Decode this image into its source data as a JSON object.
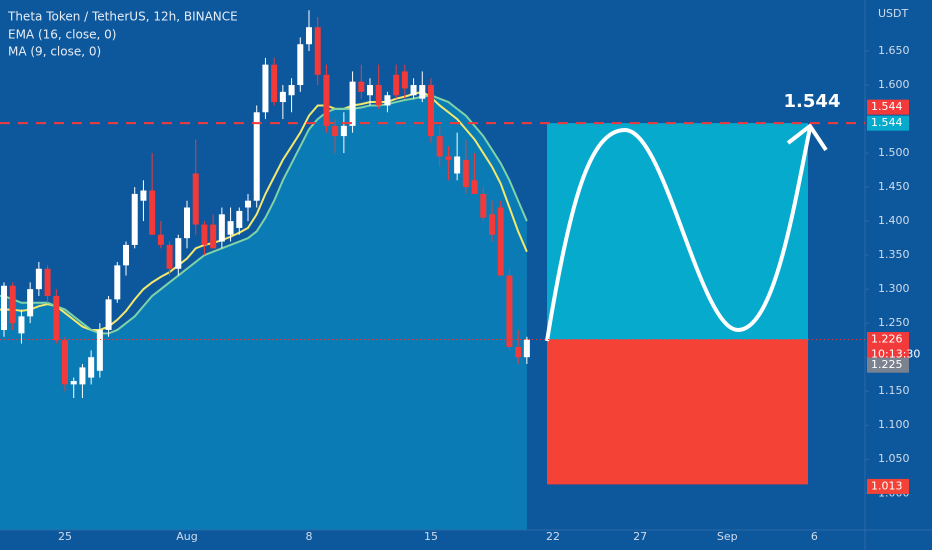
{
  "chart_data": {
    "type": "candlestick",
    "title": "Theta Token / TetherUS, 12h, BINANCE",
    "axis_unit": "USDT",
    "categories": [
      null,
      null,
      null,
      null,
      null,
      null,
      null,
      null,
      "25",
      null,
      null,
      null,
      null,
      null,
      null,
      null,
      null,
      null,
      null,
      null,
      null,
      null,
      "Aug",
      null,
      null,
      null,
      null,
      null,
      null,
      null,
      null,
      null,
      null,
      null,
      null,
      null,
      "8",
      null,
      null,
      null,
      null,
      null,
      null,
      null,
      null,
      null,
      null,
      null,
      null,
      null,
      "15",
      null,
      null,
      null,
      null,
      null,
      null,
      null,
      null,
      null,
      null,
      null,
      null,
      null,
      "22",
      null,
      null,
      null,
      null,
      null,
      null,
      null,
      null,
      null,
      "27",
      null,
      null,
      null,
      null,
      null,
      null,
      null,
      null,
      null,
      "Sep",
      null,
      null,
      null,
      null,
      null,
      null,
      null,
      null,
      null,
      "6",
      null,
      null,
      null,
      null,
      null
    ],
    "open": [
      1.27,
      1.24,
      1.305,
      1.235,
      1.26,
      1.3,
      1.33,
      1.29,
      1.225,
      1.16,
      1.16,
      1.17,
      1.18,
      1.24,
      1.285,
      1.335,
      1.365,
      1.43,
      1.445,
      1.38,
      1.365,
      1.33,
      1.375,
      1.47,
      1.395,
      1.395,
      1.37,
      1.38,
      1.39,
      1.42,
      1.43,
      1.56,
      1.63,
      1.575,
      1.585,
      1.6,
      1.66,
      1.685,
      1.615,
      1.54,
      1.525,
      1.54,
      1.605,
      1.585,
      1.6,
      1.57,
      1.615,
      1.62,
      1.585,
      1.58,
      1.6,
      1.525,
      1.495,
      1.47,
      1.49,
      1.46,
      1.44,
      1.41,
      1.42,
      1.32,
      1.215,
      1.2,
      null,
      null,
      null,
      null,
      null,
      null,
      null,
      null,
      null,
      null,
      null,
      null,
      null,
      null,
      null,
      null,
      null,
      null,
      null,
      null,
      null,
      null,
      null,
      null,
      null,
      null,
      null,
      null,
      null,
      null,
      null,
      null,
      null,
      null,
      null,
      null,
      null,
      null
    ],
    "high": [
      1.29,
      1.31,
      1.31,
      1.27,
      1.31,
      1.34,
      1.335,
      1.3,
      1.23,
      1.17,
      1.19,
      1.21,
      1.25,
      1.29,
      1.34,
      1.37,
      1.45,
      1.46,
      1.5,
      1.4,
      1.37,
      1.38,
      1.43,
      1.52,
      1.4,
      1.41,
      1.42,
      1.42,
      1.42,
      1.44,
      1.57,
      1.64,
      1.64,
      1.6,
      1.61,
      1.67,
      1.71,
      1.7,
      1.63,
      1.55,
      1.56,
      1.62,
      1.63,
      1.61,
      1.63,
      1.59,
      1.63,
      1.63,
      1.61,
      1.62,
      1.61,
      1.54,
      1.51,
      1.53,
      1.52,
      1.5,
      1.45,
      1.43,
      1.43,
      1.33,
      1.24,
      1.23,
      null,
      null,
      null,
      null,
      null,
      null,
      null,
      null,
      null,
      null,
      null,
      null,
      null,
      null,
      null,
      null,
      null,
      null,
      null,
      null,
      null,
      null,
      null,
      null,
      null,
      null,
      null,
      null,
      null,
      null,
      null,
      null,
      null,
      null,
      null,
      null,
      null,
      null
    ],
    "low": [
      1.24,
      1.23,
      1.24,
      1.22,
      1.25,
      1.29,
      1.28,
      1.22,
      1.15,
      1.14,
      1.14,
      1.16,
      1.17,
      1.23,
      1.28,
      1.32,
      1.36,
      1.4,
      1.38,
      1.36,
      1.32,
      1.32,
      1.36,
      1.38,
      1.35,
      1.36,
      1.36,
      1.37,
      1.38,
      1.4,
      1.42,
      1.55,
      1.57,
      1.55,
      1.56,
      1.59,
      1.65,
      1.6,
      1.53,
      1.5,
      1.5,
      1.53,
      1.58,
      1.57,
      1.565,
      1.56,
      1.58,
      1.58,
      1.58,
      1.575,
      1.515,
      1.48,
      1.46,
      1.46,
      1.44,
      1.44,
      1.4,
      1.37,
      1.32,
      1.21,
      1.19,
      1.19,
      null,
      null,
      null,
      null,
      null,
      null,
      null,
      null,
      null,
      null,
      null,
      null,
      null,
      null,
      null,
      null,
      null,
      null,
      null,
      null,
      null,
      null,
      null,
      null,
      null,
      null,
      null,
      null,
      null,
      null,
      null,
      null,
      null,
      null,
      null,
      null,
      null,
      null
    ],
    "close": [
      1.285,
      1.305,
      1.25,
      1.26,
      1.3,
      1.33,
      1.29,
      1.225,
      1.16,
      1.165,
      1.185,
      1.2,
      1.24,
      1.285,
      1.335,
      1.365,
      1.44,
      1.445,
      1.38,
      1.365,
      1.33,
      1.375,
      1.42,
      1.395,
      1.365,
      1.36,
      1.41,
      1.4,
      1.415,
      1.43,
      1.56,
      1.63,
      1.575,
      1.59,
      1.6,
      1.66,
      1.685,
      1.615,
      1.54,
      1.525,
      1.54,
      1.605,
      1.59,
      1.6,
      1.57,
      1.585,
      1.585,
      1.595,
      1.6,
      1.6,
      1.525,
      1.495,
      1.49,
      1.495,
      1.45,
      1.44,
      1.405,
      1.38,
      1.32,
      1.215,
      1.2,
      1.226,
      null,
      null,
      null,
      null,
      null,
      null,
      null,
      null,
      null,
      null,
      null,
      null,
      null,
      null,
      null,
      null,
      null,
      null,
      null,
      null,
      null,
      null,
      null,
      null,
      null,
      null,
      null,
      null,
      null,
      null,
      null,
      null,
      null,
      null,
      null,
      null,
      null,
      null
    ],
    "up_color": "#ffffff",
    "down_color": "#f23a3a",
    "series": [
      {
        "name": "EMA (16, close, 0)",
        "color": "#f3e86b",
        "values": [
          1.27,
          1.27,
          1.27,
          1.268,
          1.27,
          1.275,
          1.278,
          1.275,
          1.265,
          1.255,
          1.245,
          1.24,
          1.24,
          1.245,
          1.255,
          1.268,
          1.285,
          1.3,
          1.31,
          1.318,
          1.325,
          1.335,
          1.345,
          1.36,
          1.365,
          1.368,
          1.372,
          1.377,
          1.383,
          1.39,
          1.41,
          1.44,
          1.465,
          1.49,
          1.51,
          1.53,
          1.555,
          1.57,
          1.57,
          1.565,
          1.565,
          1.57,
          1.572,
          1.575,
          1.575,
          1.575,
          1.58,
          1.583,
          1.587,
          1.59,
          1.582,
          1.57,
          1.56,
          1.55,
          1.535,
          1.52,
          1.5,
          1.48,
          1.455,
          1.42,
          1.385,
          1.355,
          null,
          null,
          null,
          null,
          null,
          null,
          null,
          null,
          null,
          null,
          null,
          null,
          null,
          null,
          null,
          null,
          null,
          null,
          null,
          null,
          null,
          null,
          null,
          null,
          null,
          null,
          null,
          null,
          null,
          null,
          null,
          null,
          null,
          null,
          null,
          null,
          null,
          null
        ]
      },
      {
        "name": "MA (9, close, 0)",
        "color": "#7fd3a6",
        "area_color": "#0a7bb4",
        "values": [
          1.29,
          1.29,
          1.285,
          1.28,
          1.28,
          1.28,
          1.28,
          1.275,
          1.27,
          1.26,
          1.25,
          1.24,
          1.235,
          1.235,
          1.24,
          1.25,
          1.26,
          1.275,
          1.29,
          1.3,
          1.31,
          1.32,
          1.33,
          1.34,
          1.35,
          1.355,
          1.36,
          1.365,
          1.37,
          1.375,
          1.385,
          1.405,
          1.43,
          1.46,
          1.485,
          1.51,
          1.535,
          1.55,
          1.56,
          1.565,
          1.565,
          1.565,
          1.567,
          1.57,
          1.57,
          1.572,
          1.575,
          1.578,
          1.58,
          1.583,
          1.585,
          1.58,
          1.575,
          1.565,
          1.555,
          1.54,
          1.525,
          1.505,
          1.485,
          1.46,
          1.43,
          1.4,
          null,
          null,
          null,
          null,
          null,
          null,
          null,
          null,
          null,
          null,
          null,
          null,
          null,
          null,
          null,
          null,
          null,
          null,
          null,
          null,
          null,
          null,
          null,
          null,
          null,
          null,
          null,
          null,
          null,
          null,
          null,
          null,
          null,
          null,
          null,
          null,
          null,
          null
        ]
      }
    ],
    "ylim": [
      0.946,
      1.725
    ],
    "yticks": [
      {
        "value": 1.0,
        "label": "1.000"
      },
      {
        "value": 1.05,
        "label": "1.050"
      },
      {
        "value": 1.1,
        "label": "1.100"
      },
      {
        "value": 1.15,
        "label": "1.150"
      },
      {
        "value": 1.2,
        "label": "1.200"
      },
      {
        "value": 1.25,
        "label": "1.250"
      },
      {
        "value": 1.3,
        "label": "1.300"
      },
      {
        "value": 1.35,
        "label": "1.350"
      },
      {
        "value": 1.4,
        "label": "1.400"
      },
      {
        "value": 1.45,
        "label": "1.450"
      },
      {
        "value": 1.5,
        "label": "1.500"
      },
      {
        "value": 1.6,
        "label": "1.600"
      },
      {
        "value": 1.65,
        "label": "1.650"
      }
    ],
    "alert_line": {
      "value": 1.544,
      "label": "1.544",
      "color": "#f23a3a"
    },
    "annotation": {
      "value": 1.544,
      "label": "1.544"
    },
    "last_price": {
      "value": 1.226,
      "label": "1.226",
      "countdown": "10:13:30",
      "color": "#f23a3a"
    },
    "ma_price": {
      "value": 1.225,
      "label": "1.225",
      "color": "#7a8290"
    },
    "position": {
      "target": {
        "value": 1.544,
        "label": "1.544",
        "color": "#05aacd"
      },
      "entry": {
        "value": 1.226
      },
      "stop": {
        "value": 1.013,
        "label": "1.013",
        "color": "#f44336"
      }
    }
  }
}
